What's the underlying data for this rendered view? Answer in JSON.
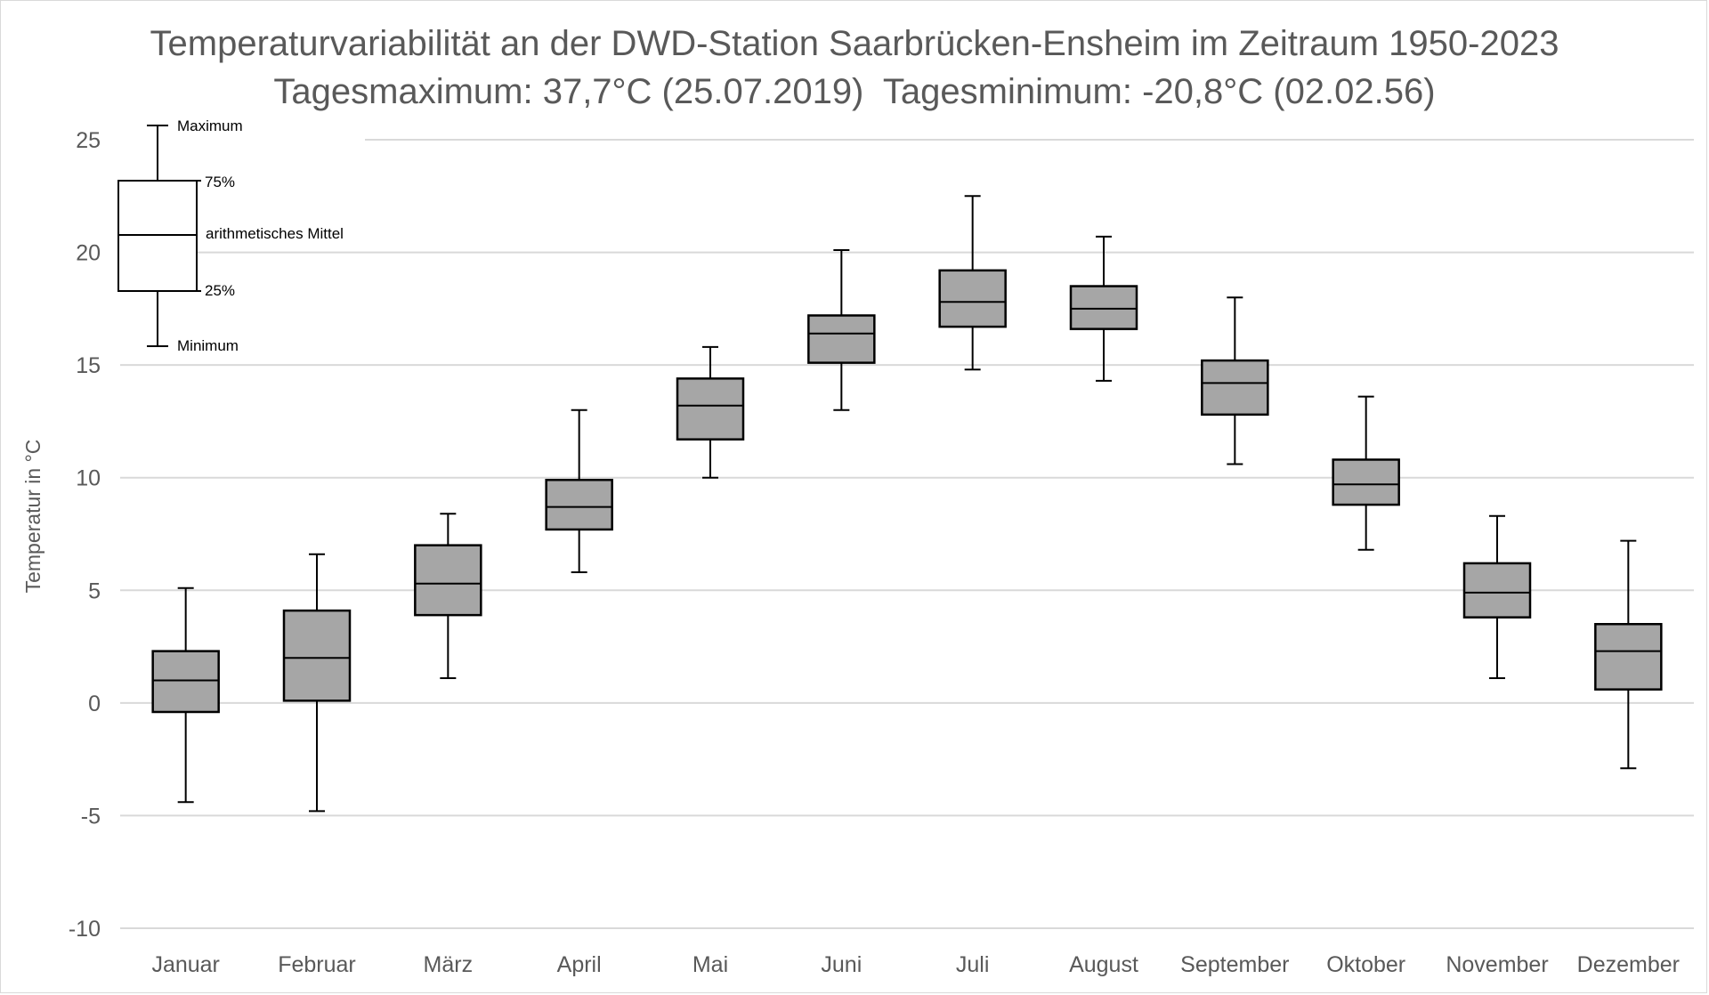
{
  "chart_data": {
    "type": "box",
    "title": "Temperaturvariabilität an der DWD-Station Saarbrücken-Ensheim im Zeitraum 1950-2023",
    "subtitle": "Tagesmaximum: 37,7°C (25.07.2019)  Tagesminimum: -20,8°C (02.02.56)",
    "ylabel": "Temperatur in °C",
    "xlabel": "",
    "ylim": [
      -10,
      25
    ],
    "yticks": [
      25,
      20,
      15,
      10,
      5,
      0,
      -5,
      -10
    ],
    "ytick_labels": [
      "25",
      "20",
      "15",
      "10",
      "5",
      "0",
      "-5",
      "-10"
    ],
    "grid": true,
    "categories": [
      "Januar",
      "Februar",
      "März",
      "April",
      "Mai",
      "Juni",
      "Juli",
      "August",
      "September",
      "Oktober",
      "November",
      "Dezember"
    ],
    "boxes": [
      {
        "min": -4.4,
        "q1": -0.4,
        "mean": 1.0,
        "q3": 2.3,
        "max": 5.1
      },
      {
        "min": -4.8,
        "q1": 0.1,
        "mean": 2.0,
        "q3": 4.1,
        "max": 6.6
      },
      {
        "min": 1.1,
        "q1": 3.9,
        "mean": 5.3,
        "q3": 7.0,
        "max": 8.4
      },
      {
        "min": 5.8,
        "q1": 7.7,
        "mean": 8.7,
        "q3": 9.9,
        "max": 13.0
      },
      {
        "min": 10.0,
        "q1": 11.7,
        "mean": 13.2,
        "q3": 14.4,
        "max": 15.8
      },
      {
        "min": 13.0,
        "q1": 15.1,
        "mean": 16.4,
        "q3": 17.2,
        "max": 20.1
      },
      {
        "min": 14.8,
        "q1": 16.7,
        "mean": 17.8,
        "q3": 19.2,
        "max": 22.5
      },
      {
        "min": 14.3,
        "q1": 16.6,
        "mean": 17.5,
        "q3": 18.5,
        "max": 20.7
      },
      {
        "min": 10.6,
        "q1": 12.8,
        "mean": 14.2,
        "q3": 15.2,
        "max": 18.0
      },
      {
        "min": 6.8,
        "q1": 8.8,
        "mean": 9.7,
        "q3": 10.8,
        "max": 13.6
      },
      {
        "min": 1.1,
        "q1": 3.8,
        "mean": 4.9,
        "q3": 6.2,
        "max": 8.3
      },
      {
        "min": -2.9,
        "q1": 0.6,
        "mean": 2.3,
        "q3": 3.5,
        "max": 7.2
      }
    ],
    "box_color": "#a6a6a6",
    "legend": {
      "placement": "top-left",
      "max_label": "Maximum",
      "q3_label": "75%",
      "mean_label": "arithmetisches Mittel",
      "q1_label": "25%",
      "min_label": "Minimum"
    }
  }
}
